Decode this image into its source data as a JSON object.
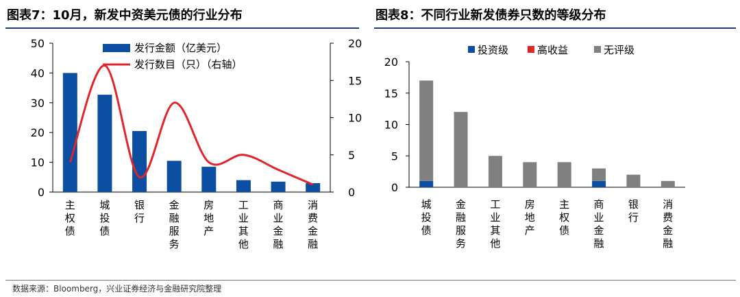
{
  "titles": {
    "left": "图表7：10月，新发中资美元债的行业分布",
    "right": "图表8：不同行业新发债券只数的等级分布"
  },
  "source": "数据来源：Bloomberg，兴业证券经济与金融研究院整理",
  "colors": {
    "navy": "#0b4ea2",
    "red": "#e0262b",
    "gray": "#808080",
    "axis": "#000000"
  },
  "chart_data": [
    {
      "type": "bar",
      "categories": [
        "主权债",
        "城投债",
        "银行",
        "金融服务",
        "房地产",
        "工业其他",
        "商业金融",
        "消费金融"
      ],
      "series": [
        {
          "name": "发行金额（亿美元）",
          "type": "bar",
          "axis": "left",
          "values": [
            40,
            32.7,
            20.5,
            10.5,
            8.5,
            4,
            3.5,
            3
          ]
        },
        {
          "name": "发行数目（只）（右轴）",
          "type": "line",
          "axis": "right",
          "values": [
            4,
            17,
            2,
            12,
            4,
            5,
            3,
            1
          ]
        }
      ],
      "y_left": {
        "min": 0,
        "max": 50,
        "ticks": [
          0,
          10,
          20,
          30,
          40,
          50
        ]
      },
      "y_right": {
        "min": 0,
        "max": 20,
        "ticks": [
          0,
          5,
          10,
          15,
          20
        ]
      },
      "legend_position": "top"
    },
    {
      "type": "bar",
      "stacked": true,
      "categories": [
        "城投债",
        "金融服务",
        "工业其他",
        "房地产",
        "主权债",
        "商业金融",
        "银行",
        "消费金融"
      ],
      "series": [
        {
          "name": "投资级",
          "values": [
            1,
            0,
            0,
            0,
            0,
            1,
            0,
            0
          ]
        },
        {
          "name": "高收益",
          "values": [
            0,
            0,
            0,
            0,
            0,
            0,
            0,
            0
          ]
        },
        {
          "name": "无评级",
          "values": [
            16,
            12,
            5,
            4,
            4,
            2,
            2,
            1
          ]
        }
      ],
      "y": {
        "min": 0,
        "max": 20,
        "ticks": [
          0,
          5,
          10,
          15,
          20
        ]
      },
      "legend_position": "top"
    }
  ]
}
